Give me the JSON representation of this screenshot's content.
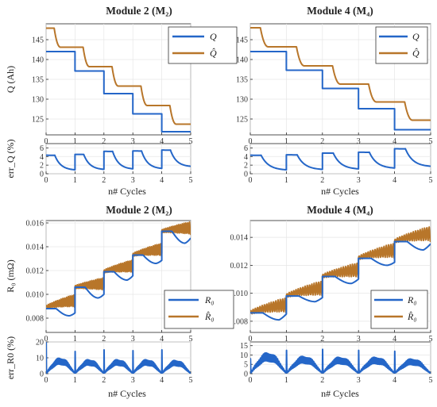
{
  "colors": {
    "meas": "#2466c8",
    "est": "#b8762a",
    "axis": "#262626",
    "grid": "#e6e6e6"
  },
  "chart_data": [
    {
      "type": "line",
      "title": "Module 2 (M₂)",
      "xlabel": "",
      "ylabel": "Q (Ah)",
      "xlim": [
        0,
        5
      ],
      "ylim": [
        121,
        149
      ],
      "yticks": [
        125,
        130,
        135,
        140,
        145
      ],
      "xticks": [
        0,
        1,
        2,
        3,
        4,
        5
      ],
      "grid": true,
      "legend": "top-right",
      "series": [
        {
          "name": "Q",
          "color_key": "meas",
          "shape": "steps",
          "levels": [
            142.0,
            137.1,
            131.4,
            126.3,
            121.8
          ]
        },
        {
          "name": "Q̂",
          "color_key": "est",
          "shape": "steps_smooth",
          "levels": [
            147.9,
            143.1,
            138.2,
            133.3,
            128.4,
            123.7
          ]
        }
      ]
    },
    {
      "type": "line",
      "title": "Module 4 (M₄)",
      "xlabel": "",
      "ylabel": "",
      "xlim": [
        0,
        5
      ],
      "ylim": [
        121,
        149
      ],
      "yticks": [
        125,
        130,
        135,
        140,
        145
      ],
      "xticks": [
        0,
        1,
        2,
        3,
        4,
        5
      ],
      "grid": true,
      "legend": "top-right",
      "series": [
        {
          "name": "Q",
          "color_key": "meas",
          "shape": "steps",
          "levels": [
            142.0,
            137.3,
            132.7,
            127.6,
            122.3
          ]
        },
        {
          "name": "Q̂",
          "color_key": "est",
          "shape": "steps_smooth",
          "levels": [
            148.0,
            143.2,
            138.4,
            133.8,
            129.3,
            124.7
          ]
        }
      ]
    },
    {
      "type": "line",
      "title": "",
      "xlabel": "n# Cycles",
      "ylabel": "err_Q (%)",
      "xlim": [
        0,
        5
      ],
      "ylim": [
        0,
        7
      ],
      "yticks": [
        0,
        2,
        4,
        6
      ],
      "xticks": [
        0,
        1,
        2,
        3,
        4,
        5
      ],
      "grid": true,
      "series": [
        {
          "name": "err_Q",
          "color_key": "meas",
          "shape": "decay",
          "start": [
            4.3,
            4.5,
            5.2,
            5.3,
            5.5
          ],
          "end": [
            0.8,
            0.9,
            1.0,
            1.1,
            1.6
          ]
        }
      ]
    },
    {
      "type": "line",
      "title": "",
      "xlabel": "n# Cycles",
      "ylabel": "",
      "xlim": [
        0,
        5
      ],
      "ylim": [
        0,
        7
      ],
      "yticks": [
        0,
        2,
        4,
        6
      ],
      "xticks": [
        0,
        1,
        2,
        3,
        4,
        5
      ],
      "grid": true,
      "series": [
        {
          "name": "err_Q",
          "color_key": "meas",
          "shape": "decay",
          "start": [
            4.3,
            4.4,
            4.8,
            5.0,
            5.8
          ],
          "end": [
            0.8,
            0.9,
            1.0,
            1.2,
            1.6
          ]
        }
      ]
    },
    {
      "type": "line",
      "title": "Module 2 (M₂)",
      "xlabel": "",
      "ylabel": "R₀ (mΩ)",
      "xlim": [
        0,
        5
      ],
      "ylim": [
        0.0068,
        0.0162
      ],
      "yticks": [
        0.008,
        0.01,
        0.012,
        0.014,
        0.016
      ],
      "xticks": [
        0,
        1,
        2,
        3,
        4,
        5
      ],
      "grid": true,
      "legend": "bottom-right",
      "series": [
        {
          "name": "R₀",
          "color_key": "meas",
          "shape": "dip",
          "start": [
            0.0088,
            0.0106,
            0.0119,
            0.0133,
            0.0153
          ],
          "end": [
            0.0083,
            0.0098,
            0.0114,
            0.0127,
            0.0145
          ],
          "mid": [
            0.0082,
            0.0097,
            0.0112,
            0.0126,
            0.0143
          ]
        },
        {
          "name": "R̂₀",
          "color_key": "est",
          "shape": "rise",
          "start": [
            0.0089,
            0.0106,
            0.0119,
            0.0133,
            0.0153
          ],
          "end": [
            0.0095,
            0.0109,
            0.0124,
            0.0138,
            0.0156
          ]
        }
      ]
    },
    {
      "type": "line",
      "title": "Module 4 (M₄)",
      "xlabel": "",
      "ylabel": "",
      "xlim": [
        0,
        5
      ],
      "ylim": [
        0.0072,
        0.0152
      ],
      "yticks": [
        0.008,
        0.01,
        0.012,
        0.014
      ],
      "xticks": [
        0,
        1,
        2,
        3,
        4,
        5
      ],
      "grid": true,
      "legend": "bottom-right",
      "series": [
        {
          "name": "R₀",
          "color_key": "meas",
          "shape": "dip",
          "start": [
            0.0086,
            0.0098,
            0.0112,
            0.0125,
            0.0137
          ],
          "end": [
            0.0084,
            0.0096,
            0.0109,
            0.0121,
            0.0134
          ],
          "mid": [
            0.0081,
            0.0094,
            0.0107,
            0.012,
            0.0131
          ]
        },
        {
          "name": "R̂₀",
          "color_key": "est",
          "shape": "rise",
          "start": [
            0.0086,
            0.0098,
            0.0112,
            0.0125,
            0.0137
          ],
          "end": [
            0.0092,
            0.0104,
            0.0117,
            0.0131,
            0.0143
          ]
        }
      ]
    },
    {
      "type": "line",
      "title": "",
      "xlabel": "n# Cycles",
      "ylabel": "err_R0 (%)",
      "xlim": [
        0,
        5
      ],
      "ylim": [
        0,
        20
      ],
      "yticks": [
        0,
        10,
        20
      ],
      "xticks": [
        0,
        1,
        2,
        3,
        4,
        5
      ],
      "grid": true,
      "series": [
        {
          "name": "err_R0",
          "color_key": "meas",
          "shape": "bumps",
          "peak": [
            10.5,
            9.5,
            9.5,
            9.5,
            9.0
          ],
          "spike": [
            19.5,
            14.0,
            15.0,
            14.5,
            15.0
          ]
        }
      ]
    },
    {
      "type": "line",
      "title": "",
      "xlabel": "n# Cycles",
      "ylabel": "",
      "xlim": [
        0,
        5
      ],
      "ylim": [
        0,
        17
      ],
      "yticks": [
        0,
        5,
        10,
        15
      ],
      "xticks": [
        0,
        1,
        2,
        3,
        4,
        5
      ],
      "grid": true,
      "series": [
        {
          "name": "err_R0",
          "color_key": "meas",
          "shape": "bumps",
          "peak": [
            12.0,
            10.0,
            9.5,
            9.5,
            8.5
          ],
          "spike": [
            8.0,
            12.5,
            13.0,
            12.5,
            12.0
          ]
        }
      ]
    }
  ]
}
